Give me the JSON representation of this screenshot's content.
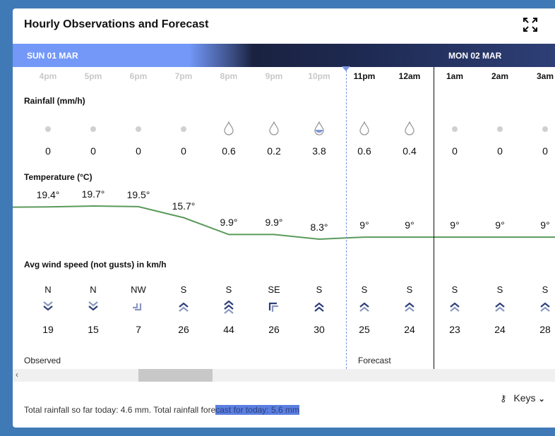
{
  "title": "Hourly Observations and Forecast",
  "days": [
    "SUN 01 MAR",
    "MON 02 MAR"
  ],
  "hours": [
    "4pm",
    "5pm",
    "6pm",
    "7pm",
    "8pm",
    "9pm",
    "10pm",
    "11pm",
    "12am",
    "1am",
    "2am",
    "3am"
  ],
  "observed_count": 7,
  "rainfall": {
    "label": "Rainfall (mm/h)",
    "values": [
      "0",
      "0",
      "0",
      "0",
      "0.6",
      "0.2",
      "3.8",
      "0.6",
      "0.4",
      "0",
      "0",
      "0"
    ]
  },
  "temperature": {
    "label": "Temperature (°C)",
    "values": [
      19.4,
      19.7,
      19.5,
      15.7,
      9.9,
      9.9,
      8.3,
      9,
      9,
      9,
      9,
      9
    ],
    "labels": [
      "19.4°",
      "19.7°",
      "19.5°",
      "15.7°",
      "9.9°",
      "9.9°",
      "8.3°",
      "9°",
      "9°",
      "9°",
      "9°",
      "9°"
    ],
    "color": "#5a9a5a"
  },
  "wind": {
    "label": "Avg wind speed (not gusts) in km/h",
    "directions": [
      "N",
      "N",
      "NW",
      "S",
      "S",
      "SE",
      "S",
      "S",
      "S",
      "S",
      "S",
      "S"
    ],
    "speeds": [
      "19",
      "15",
      "7",
      "26",
      "44",
      "26",
      "30",
      "25",
      "24",
      "23",
      "24",
      "28"
    ]
  },
  "observed_label": "Observed",
  "forecast_label": "Forecast",
  "keys_label": "Keys",
  "footer": {
    "part1": "Total rainfall so far today: 4.6 mm. Total rainfall fore",
    "part2": "cast for today: 5.6 mm"
  }
}
